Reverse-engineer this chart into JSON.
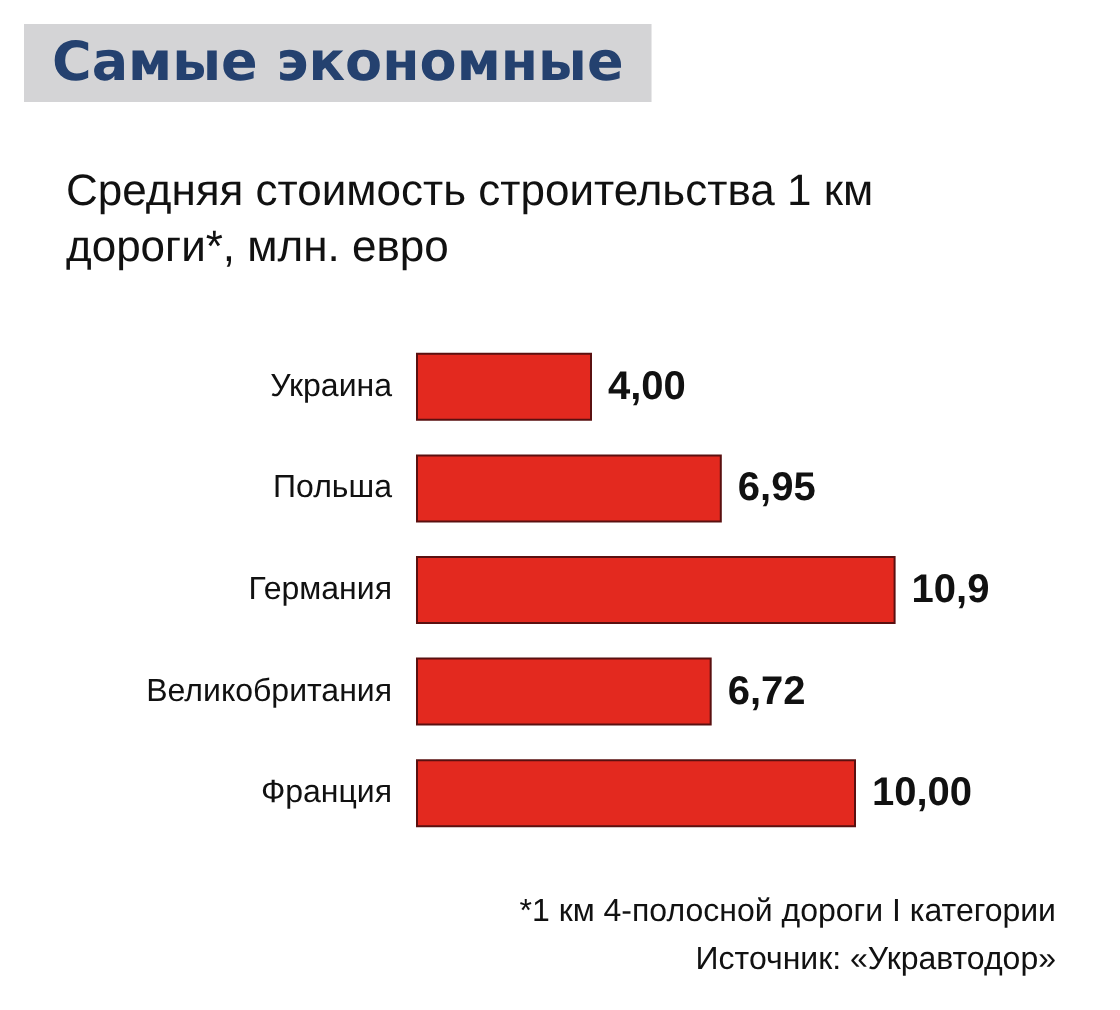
{
  "chart_data": {
    "type": "bar",
    "orientation": "horizontal",
    "title": "Самые экономные",
    "subtitle": "Средняя стоимость строительства 1 км\nдороги*, млн. евро",
    "categories": [
      "Украина",
      "Польша",
      "Германия",
      "Великобритания",
      "Франция"
    ],
    "values": [
      4.0,
      6.95,
      10.9,
      6.72,
      10.0
    ],
    "value_labels": [
      "4,00",
      "6,95",
      "10,9",
      "6,72",
      "10,00"
    ],
    "color": "#e3291f",
    "annotations": [
      "*1 км 4-полосной дороги I категории",
      "Источник: «Укравтодор»"
    ]
  }
}
